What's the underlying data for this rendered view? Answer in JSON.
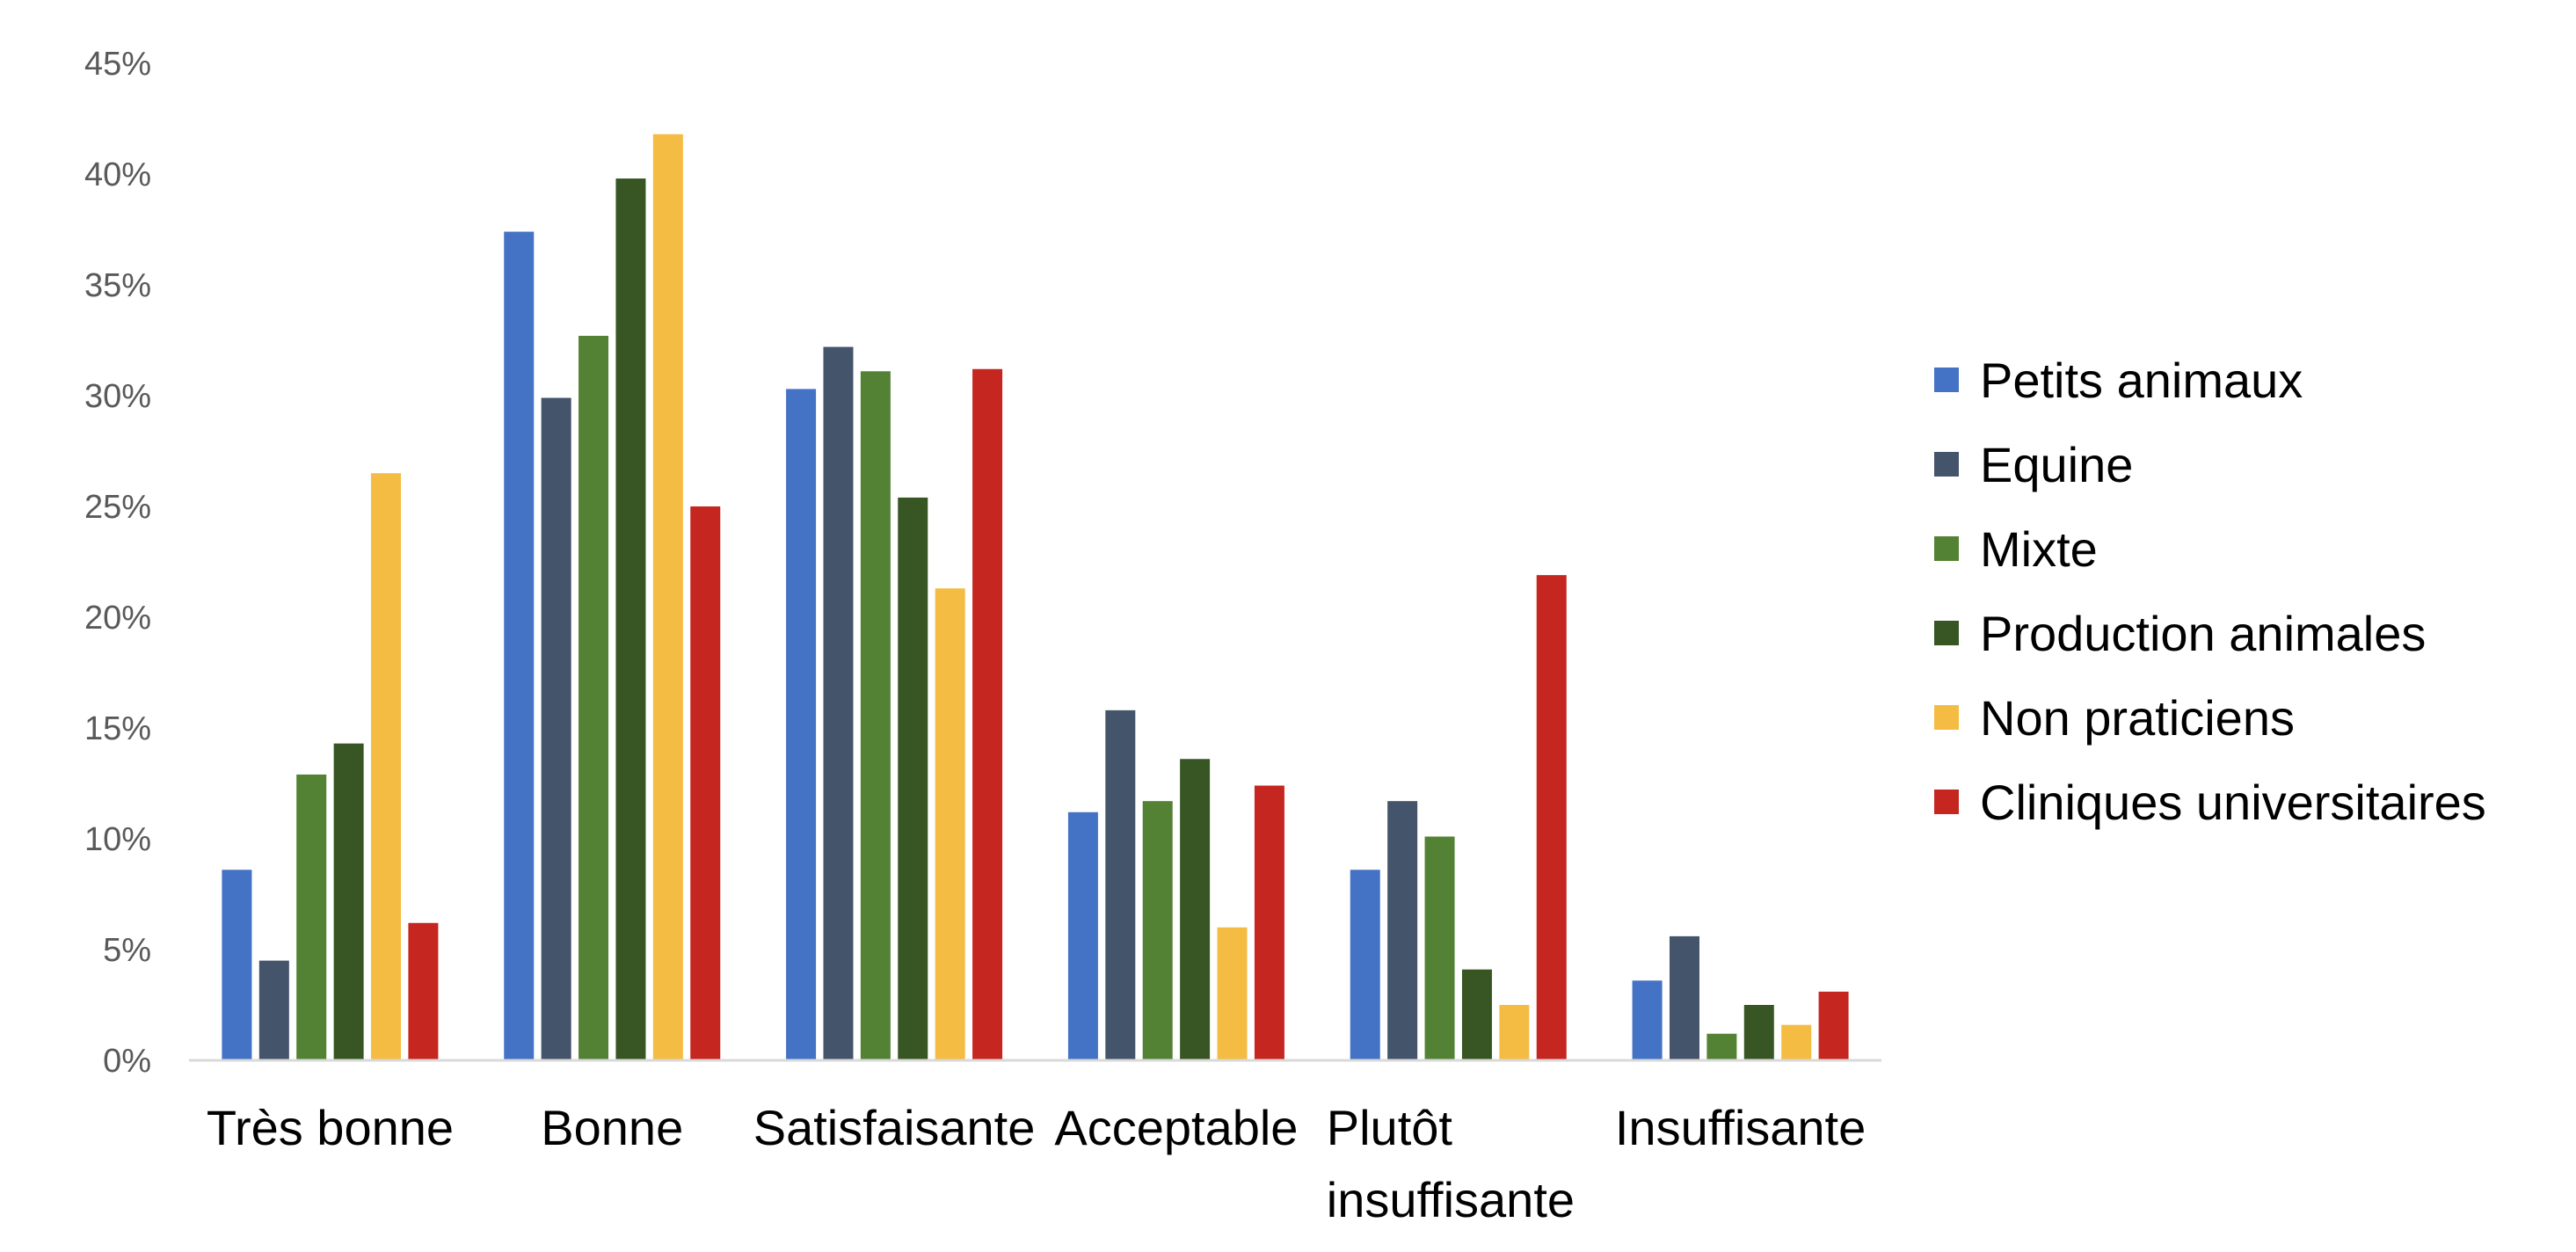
{
  "chart_data": {
    "type": "bar",
    "title": "",
    "xlabel": "",
    "ylabel": "",
    "ylim": [
      0,
      45
    ],
    "y_ticks": [
      "0%",
      "5%",
      "10%",
      "15%",
      "20%",
      "25%",
      "30%",
      "35%",
      "40%",
      "45%"
    ],
    "grid": false,
    "legend_position": "right",
    "categories": [
      [
        "Très bonne"
      ],
      [
        "Bonne"
      ],
      [
        "Satisfaisante"
      ],
      [
        "Acceptable"
      ],
      [
        "Plutôt",
        "insuffisante"
      ],
      [
        "Insuffisante"
      ]
    ],
    "series": [
      {
        "name": "Petits animaux",
        "color": "#4472c4",
        "values": [
          8.6,
          37.4,
          30.3,
          11.2,
          8.6,
          3.6
        ]
      },
      {
        "name": "Equine",
        "color": "#44546a",
        "values": [
          4.5,
          29.9,
          32.2,
          15.8,
          11.7,
          5.6
        ]
      },
      {
        "name": "Mixte",
        "color": "#548235",
        "values": [
          12.9,
          32.7,
          31.1,
          11.7,
          10.1,
          1.2
        ]
      },
      {
        "name": "Production animales",
        "color": "#375623",
        "values": [
          14.3,
          39.8,
          25.4,
          13.6,
          4.1,
          2.5
        ]
      },
      {
        "name": "Non praticiens",
        "color": "#f4bc42",
        "values": [
          26.5,
          41.8,
          21.3,
          6.0,
          2.5,
          1.6
        ]
      },
      {
        "name": "Cliniques universitaires",
        "color": "#c5261f",
        "values": [
          6.2,
          25.0,
          31.2,
          12.4,
          21.9,
          3.1
        ]
      }
    ]
  }
}
